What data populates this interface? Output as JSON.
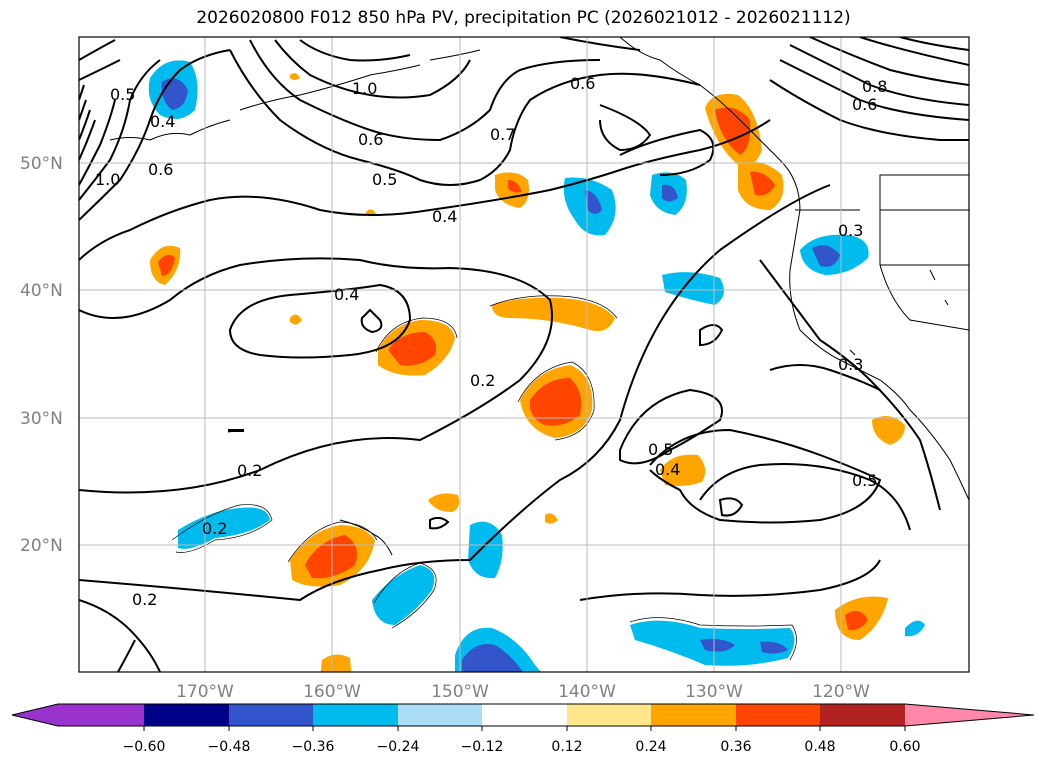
{
  "title": "2026020800 F012 850 hPa PV, precipitation PC (2026021012 - 2026021112)",
  "map": {
    "lat_labels": [
      "50°N",
      "40°N",
      "30°N",
      "20°N"
    ],
    "lon_labels": [
      "170°W",
      "160°W",
      "150°W",
      "140°W",
      "130°W",
      "120°W"
    ],
    "contour_labels": [
      "0.5",
      "0.4",
      "0.6",
      "1.0",
      "0.6",
      "0.6",
      "0.5",
      "0.7",
      "0.4",
      "0.4",
      "0.2",
      "0.2",
      "0.2",
      "0.2",
      "0.5",
      "0.4",
      "0.5",
      "0.3",
      "0.3",
      "0.6",
      "1.0",
      "0.8"
    ]
  },
  "colorbar": {
    "ticks": [
      "−0.60",
      "−0.48",
      "−0.36",
      "−0.24",
      "−0.12",
      "0.12",
      "0.24",
      "0.36",
      "0.48",
      "0.60"
    ],
    "colors": [
      "#9933cc",
      "#000088",
      "#3355cc",
      "#00bbee",
      "#aaddf8",
      "#ffffff",
      "#ffe68a",
      "#ffa500",
      "#ff4500",
      "#b22222",
      "#ff88aa"
    ]
  }
}
